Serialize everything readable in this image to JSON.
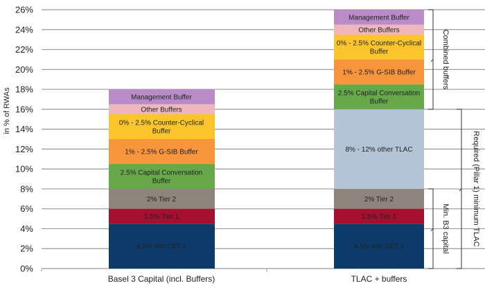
{
  "chart_data": {
    "type": "bar",
    "stacked": true,
    "title": "",
    "xlabel": "",
    "ylabel": "in % of RWAs",
    "ylim": [
      0,
      26
    ],
    "yticks": [
      0,
      2,
      4,
      6,
      8,
      10,
      12,
      14,
      16,
      18,
      20,
      22,
      24,
      26
    ],
    "ytick_labels": [
      "0%",
      "2%",
      "4%",
      "6%",
      "8%",
      "10%",
      "12%",
      "14%",
      "16%",
      "18%",
      "20%",
      "22%",
      "24%",
      "26%"
    ],
    "grid": true,
    "categories": [
      "Basel 3 Capital (incl. Buffers)",
      "TLAC + buffers"
    ],
    "bars": [
      {
        "category": "Basel 3 Capital (incl. Buffers)",
        "segments": [
          {
            "label": "4.5% min CET 1",
            "value": 4.5,
            "color": "#0b3a6b",
            "text_color": "#1b2d4a"
          },
          {
            "label": "1.5% Tier 1",
            "value": 1.5,
            "color": "#a50f30",
            "text_color": "#5a0a1c"
          },
          {
            "label": "2% Tier 2",
            "value": 2.0,
            "color": "#8f847b",
            "text_color": "#2a2522"
          },
          {
            "label": "2.5% Capital Conversation Buffer",
            "lines": [
              "2.5% Capital Conversation",
              "Buffer"
            ],
            "value": 2.5,
            "color": "#66a84a",
            "text_color": "#1e2a18"
          },
          {
            "label": "1% - 2.5% G-SIB Buffer",
            "value": 2.5,
            "color": "#f7953d",
            "text_color": "#2a1e10"
          },
          {
            "label": "0% - 2.5% Counter-Cyclical Buffer",
            "lines": [
              "0% - 2.5% Counter-Cyclical",
              "Buffer"
            ],
            "value": 2.5,
            "color": "#fbc52b",
            "text_color": "#2a2410"
          },
          {
            "label": "Other Buffers",
            "value": 1.0,
            "color": "#efb6bc",
            "text_color": "#2a2020"
          },
          {
            "label": "Management Buffer",
            "value": 1.5,
            "color": "#b98cc8",
            "text_color": "#2a2030"
          }
        ]
      },
      {
        "category": "TLAC + buffers",
        "segments": [
          {
            "label": "4.5% min CET 1",
            "value": 4.5,
            "color": "#0b3a6b",
            "text_color": "#1b2d4a"
          },
          {
            "label": "1.5% Tier 1",
            "value": 1.5,
            "color": "#a50f30",
            "text_color": "#5a0a1c"
          },
          {
            "label": "2% Tier 2",
            "value": 2.0,
            "color": "#8f847b",
            "text_color": "#2a2522"
          },
          {
            "label": "8% - 12% other TLAC",
            "value": 8.0,
            "color": "#b3c4d6",
            "text_color": "#222222"
          },
          {
            "label": "2.5% Capital Conversation Buffer",
            "lines": [
              "2.5% Capital Conversation",
              "Buffer"
            ],
            "value": 2.5,
            "color": "#66a84a",
            "text_color": "#1e2a18"
          },
          {
            "label": "1% - 2.5% G-SIB Buffer",
            "value": 2.5,
            "color": "#f7953d",
            "text_color": "#2a1e10"
          },
          {
            "label": "0% - 2.5% Counter-Cyclical Buffer",
            "lines": [
              "0% - 2.5% Counter-Cyclical",
              "Buffer"
            ],
            "value": 2.5,
            "color": "#fbc52b",
            "text_color": "#2a2410"
          },
          {
            "label": "Other Buffers",
            "value": 1.0,
            "color": "#efb6bc",
            "text_color": "#2a2020"
          },
          {
            "label": "Management Buffer",
            "value": 1.5,
            "color": "#b98cc8",
            "text_color": "#2a2030"
          }
        ]
      }
    ],
    "annotations": [
      {
        "type": "bracket",
        "label": "Combined buffers",
        "from": 16,
        "to": 26,
        "bar": "TLAC + buffers"
      },
      {
        "type": "bracket",
        "label": "Min. B3 capital",
        "from": 0,
        "to": 8,
        "bar": "TLAC + buffers"
      },
      {
        "type": "bracket",
        "label": "Required (Pillar 1) minimum TLAC",
        "from": 0,
        "to": 16,
        "bar": "TLAC + buffers"
      }
    ]
  }
}
